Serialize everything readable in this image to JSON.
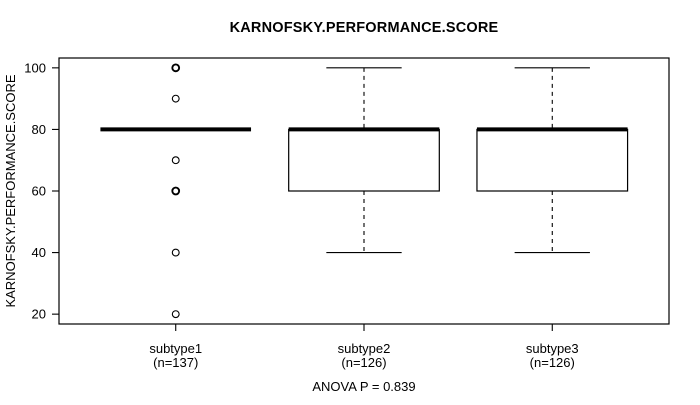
{
  "colors": {
    "background": "#ffffff",
    "foreground": "#000000"
  },
  "chart_data": {
    "type": "boxplot",
    "title": "KARNOFSKY.PERFORMANCE.SCORE",
    "ylabel": "KARNOFSKY.PERFORMANCE.SCORE",
    "footer": "ANOVA P = 0.839",
    "ylim": [
      16.8,
      103.2
    ],
    "yticks": [
      20,
      40,
      60,
      80,
      100
    ],
    "grid": false,
    "legend": "none",
    "groups": [
      {
        "label": "subtype1",
        "n_label": "(n=137)",
        "n": 137,
        "q1": 80,
        "median": 80,
        "q3": 80,
        "whisker_low": 80,
        "whisker_high": 80,
        "outliers": [
          {
            "value": 100,
            "heavy": true
          },
          {
            "value": 90,
            "heavy": false
          },
          {
            "value": 70,
            "heavy": false
          },
          {
            "value": 60,
            "heavy": true
          },
          {
            "value": 40,
            "heavy": false
          },
          {
            "value": 20,
            "heavy": false
          }
        ]
      },
      {
        "label": "subtype2",
        "n_label": "(n=126)",
        "n": 126,
        "q1": 60,
        "median": 80,
        "q3": 80,
        "whisker_low": 40,
        "whisker_high": 100,
        "outliers": []
      },
      {
        "label": "subtype3",
        "n_label": "(n=126)",
        "n": 126,
        "q1": 60,
        "median": 80,
        "q3": 80,
        "whisker_low": 40,
        "whisker_high": 100,
        "outliers": []
      }
    ]
  }
}
